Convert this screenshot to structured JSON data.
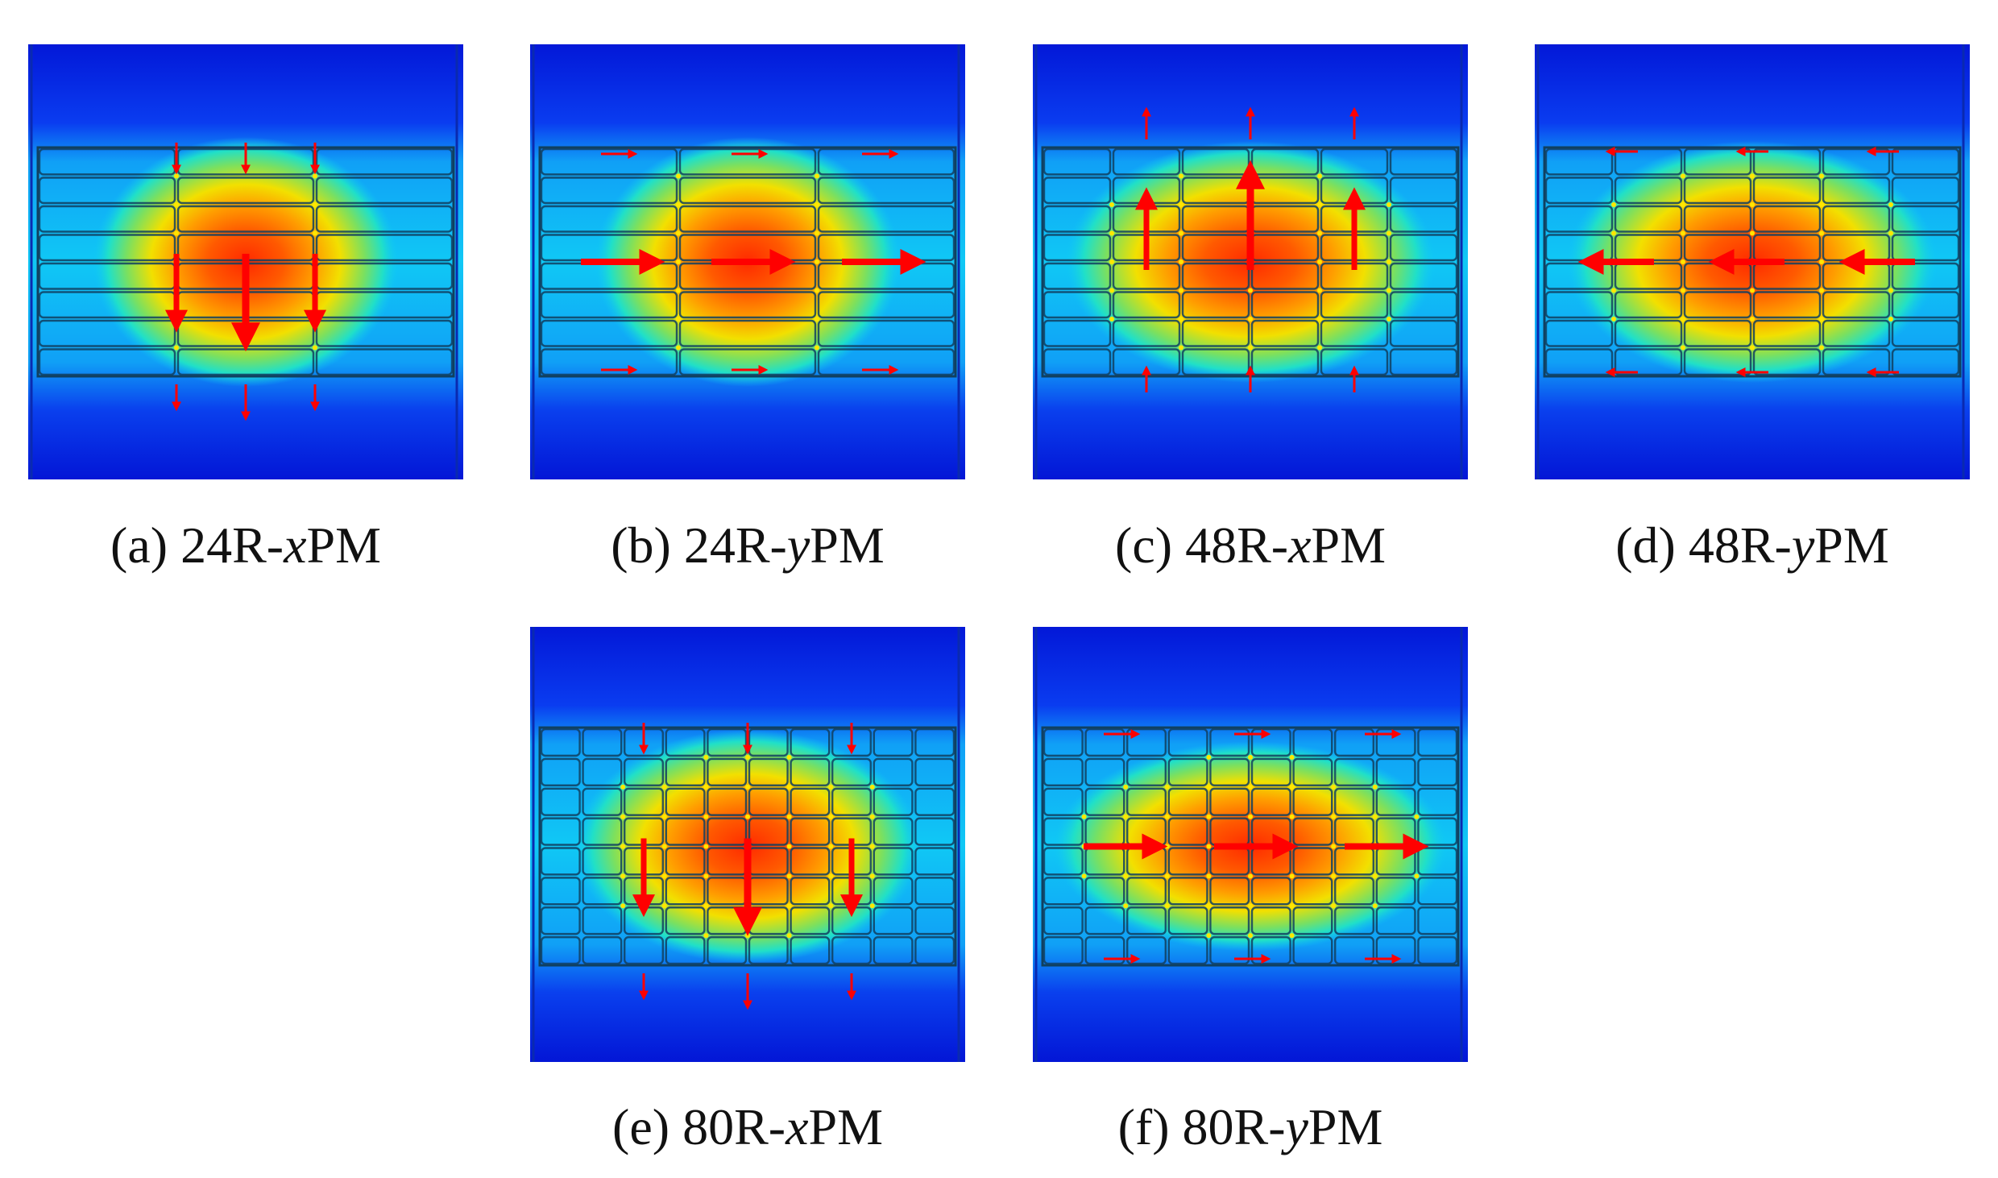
{
  "colors": {
    "field_low": "#0a1ee6",
    "field_mid": "#00e0f0",
    "field_high": "#ff2a00",
    "arrow": "#ff0000",
    "grid_line": "#104060"
  },
  "panels": [
    {
      "id": "a",
      "prefix": "(a) 24R-",
      "axis": "x",
      "suffix": "PM",
      "rows": 8,
      "cols": 3,
      "mode": "x",
      "hotspot": "single"
    },
    {
      "id": "b",
      "prefix": "(b) 24R-",
      "axis": "y",
      "suffix": "PM",
      "rows": 8,
      "cols": 3,
      "mode": "y",
      "hotspot": "single"
    },
    {
      "id": "c",
      "prefix": "(c) 48R-",
      "axis": "x",
      "suffix": "PM",
      "rows": 8,
      "cols": 6,
      "mode": "x",
      "hotspot": "single"
    },
    {
      "id": "d",
      "prefix": "(d) 48R-",
      "axis": "y",
      "suffix": "PM",
      "rows": 8,
      "cols": 6,
      "mode": "y",
      "hotspot": "single"
    },
    {
      "id": "e",
      "prefix": "(e) 80R-",
      "axis": "x",
      "suffix": "PM",
      "rows": 8,
      "cols": 10,
      "mode": "x",
      "hotspot": "single"
    },
    {
      "id": "f",
      "prefix": "(f) 80R-",
      "axis": "y",
      "suffix": "PM",
      "rows": 8,
      "cols": 10,
      "mode": "y",
      "hotspot": "single"
    }
  ]
}
